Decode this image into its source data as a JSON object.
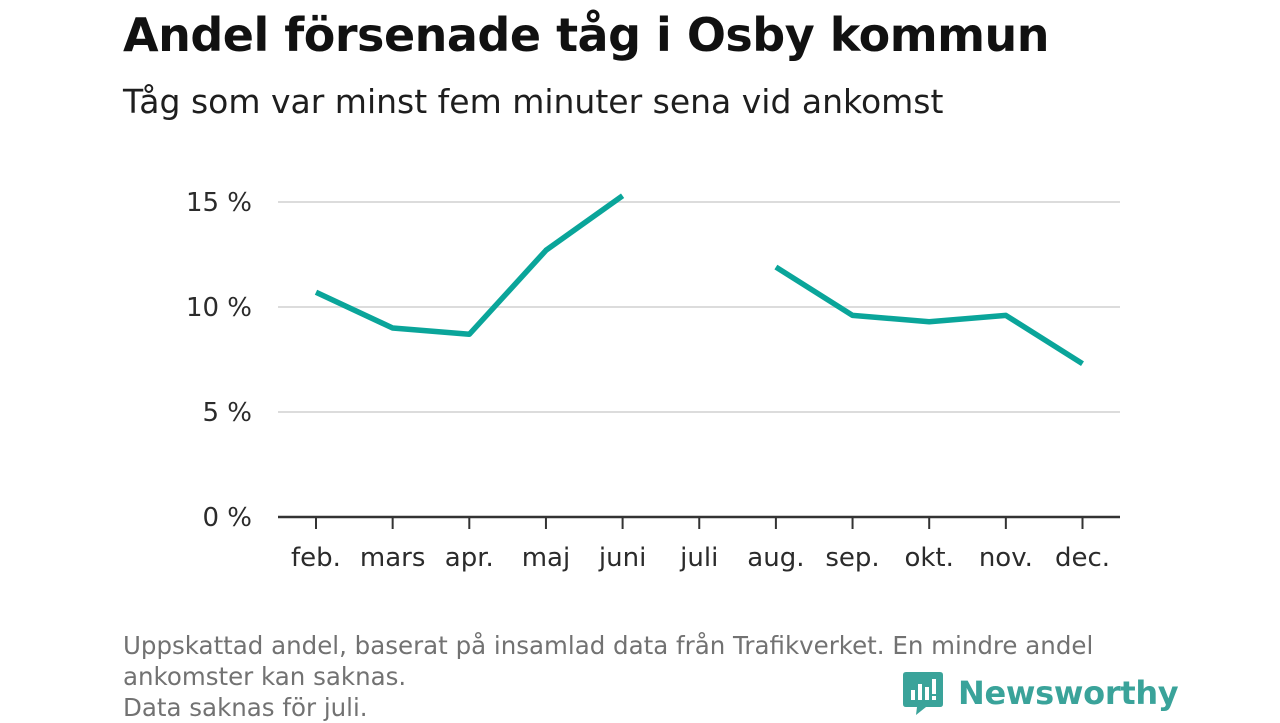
{
  "header": {
    "title": "Andel försenade tåg i Osby kommun",
    "subtitle": "Tåg som var minst fem minuter sena vid ankomst"
  },
  "chart_data": {
    "type": "line",
    "title": "Andel försenade tåg i Osby kommun",
    "subtitle": "Tåg som var minst fem minuter sena vid ankomst",
    "xlabel": "",
    "ylabel": "",
    "categories": [
      "feb.",
      "mars",
      "apr.",
      "maj",
      "juni",
      "juli",
      "aug.",
      "sep.",
      "okt.",
      "nov.",
      "dec."
    ],
    "series": [
      {
        "values": [
          10.7,
          9.0,
          8.7,
          12.7,
          15.3,
          null,
          11.9,
          9.6,
          9.3,
          9.6,
          7.3
        ]
      }
    ],
    "yticks": [
      0,
      5,
      10,
      15
    ],
    "ytick_labels": [
      "0 %",
      "5 %",
      "10 %",
      "15 %"
    ],
    "ylim": [
      0,
      15.3
    ],
    "grid": true,
    "colors": {
      "line": "#0aa59a",
      "grid": "#dcdcdc",
      "axis": "#333333"
    }
  },
  "footnote": {
    "lines": [
      "Uppskattad andel, baserat på insamlad data från Trafikverket. En mindre andel",
      "ankomster kan saknas.",
      "Data saknas för juli."
    ]
  },
  "brand": {
    "name": "Newsworthy",
    "icon": "newsworthy-logo-icon",
    "color": "#3aa39a"
  }
}
